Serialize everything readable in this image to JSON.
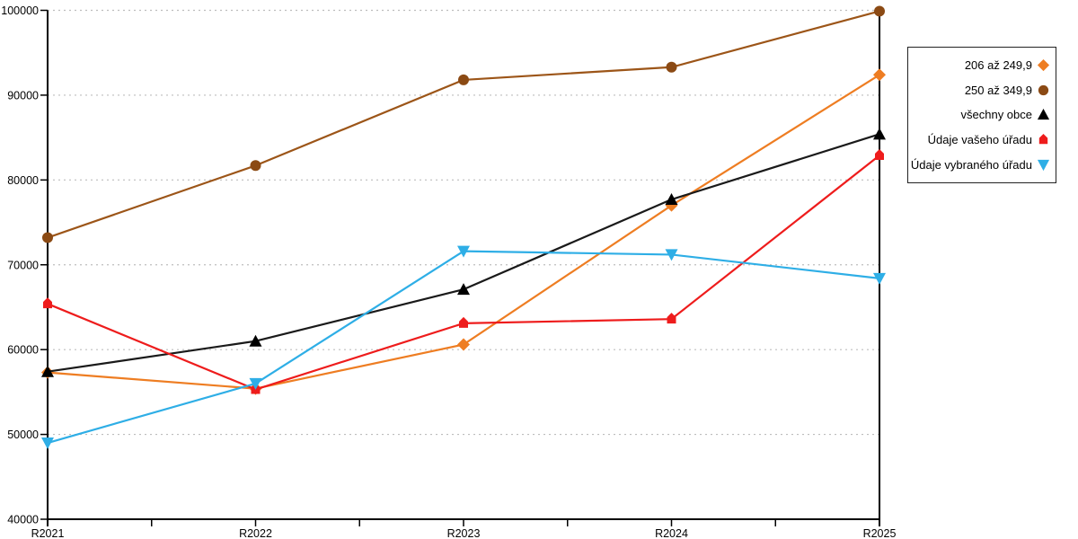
{
  "chart_data": {
    "type": "line",
    "title": "",
    "xlabel": "",
    "ylabel": "",
    "x_categories": [
      "R2021",
      "R2022",
      "R2023",
      "R2024",
      "R2025"
    ],
    "ylim": [
      40000,
      100000
    ],
    "y_ticks": [
      40000,
      50000,
      60000,
      70000,
      80000,
      90000,
      100000
    ],
    "grid": "horizontal-dotted",
    "grid_color": "#bdbdbd",
    "axis_color": "#000000",
    "legend_position": "right-top",
    "series": [
      {
        "name": "206 až 249,9",
        "marker": "diamond",
        "color": "#ee7d22",
        "values": [
          57300,
          55400,
          60600,
          77000,
          92400
        ]
      },
      {
        "name": "250 až 349,9",
        "marker": "circle",
        "color": "#9c5518",
        "marker_color": "#8b4a14",
        "values": [
          73200,
          81700,
          91800,
          93300,
          99900
        ]
      },
      {
        "name": "všechny obce",
        "marker": "triangle-up",
        "color": "#1a1a1a",
        "marker_color": "#000000",
        "values": [
          57400,
          61000,
          67100,
          77700,
          85400
        ]
      },
      {
        "name": "Údaje vašeho úřadu",
        "marker": "pentagon",
        "color": "#ee1c1c",
        "values": [
          65400,
          55300,
          63100,
          63600,
          82900
        ]
      },
      {
        "name": "Údaje vybraného úřadu",
        "marker": "triangle-down",
        "color": "#2eaee6",
        "values": [
          49000,
          56000,
          71600,
          71200,
          68400
        ]
      }
    ]
  }
}
